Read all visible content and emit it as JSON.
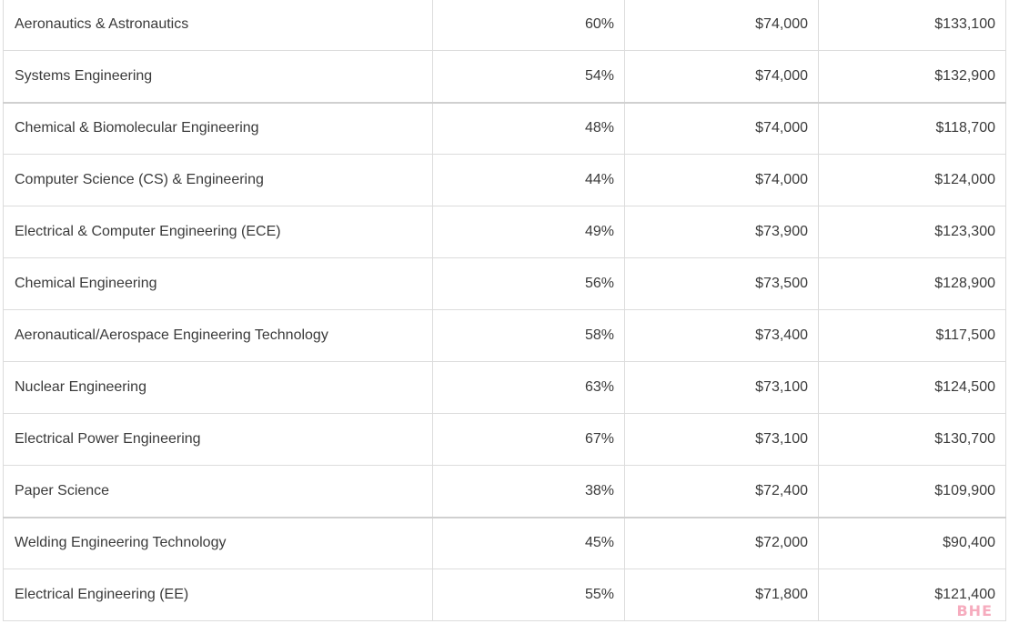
{
  "table": {
    "rows": [
      {
        "major": "Aeronautics & Astronautics",
        "pct": "60%",
        "early": "$74,000",
        "mid": "$133,100"
      },
      {
        "major": "Systems Engineering",
        "pct": "54%",
        "early": "$74,000",
        "mid": "$132,900"
      },
      {
        "major": "Chemical & Biomolecular Engineering",
        "pct": "48%",
        "early": "$74,000",
        "mid": "$118,700"
      },
      {
        "major": "Computer Science (CS) & Engineering",
        "pct": "44%",
        "early": "$74,000",
        "mid": "$124,000"
      },
      {
        "major": "Electrical & Computer Engineering (ECE)",
        "pct": "49%",
        "early": "$73,900",
        "mid": "$123,300"
      },
      {
        "major": "Chemical Engineering",
        "pct": "56%",
        "early": "$73,500",
        "mid": "$128,900"
      },
      {
        "major": "Aeronautical/Aerospace Engineering Technology",
        "pct": "58%",
        "early": "$73,400",
        "mid": "$117,500"
      },
      {
        "major": "Nuclear Engineering",
        "pct": "63%",
        "early": "$73,100",
        "mid": "$124,500"
      },
      {
        "major": "Electrical Power Engineering",
        "pct": "67%",
        "early": "$73,100",
        "mid": "$130,700"
      },
      {
        "major": "Paper Science",
        "pct": "38%",
        "early": "$72,400",
        "mid": "$109,900"
      },
      {
        "major": "Welding Engineering Technology",
        "pct": "45%",
        "early": "$72,000",
        "mid": "$90,400"
      },
      {
        "major": "Electrical Engineering (EE)",
        "pct": "55%",
        "early": "$71,800",
        "mid": "$121,400"
      }
    ]
  },
  "watermark": "BHE"
}
